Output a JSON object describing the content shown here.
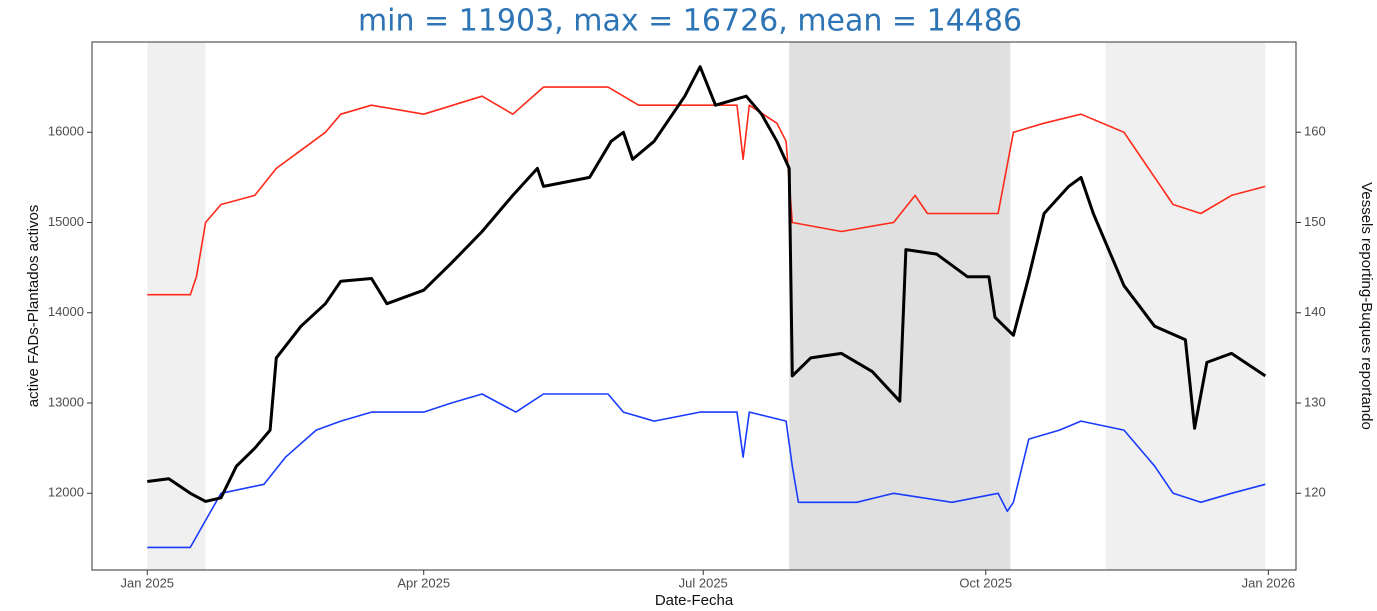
{
  "chart_data": {
    "type": "line",
    "title": "min = 11903, max = 16726, mean = 14486",
    "x_label": "Date-Fecha",
    "y_label": "active FADs-Plantados activos",
    "y2_label": "Vessels reporting-Buques reportando",
    "xlim": [
      "2024-12-14",
      "2026-01-10"
    ],
    "xticks": [
      {
        "value": "2025-01-01",
        "label": "Jan 2025"
      },
      {
        "value": "2025-04-01",
        "label": "Apr 2025"
      },
      {
        "value": "2025-07-01",
        "label": "Jul 2025"
      },
      {
        "value": "2025-10-01",
        "label": "Oct 2025"
      },
      {
        "value": "2026-01-01",
        "label": "Jan 2026"
      }
    ],
    "ylim": [
      11150,
      17000
    ],
    "yticks": [
      12000,
      13000,
      14000,
      15000,
      16000
    ],
    "y2lim": [
      111.5,
      170
    ],
    "y2ticks": [
      120,
      130,
      140,
      150,
      160
    ],
    "shaded_regions": [
      {
        "start": "2025-01-01",
        "end": "2025-01-20",
        "color": "#f0f0f0"
      },
      {
        "start": "2025-07-29",
        "end": "2025-10-09",
        "color": "#e0e0e0"
      },
      {
        "start": "2025-11-09",
        "end": "2025-12-31",
        "color": "#f0f0f0"
      }
    ],
    "series": [
      {
        "color": "#000000",
        "axis": "y",
        "x": [
          "2025-01-01",
          "2025-01-08",
          "2025-01-15",
          "2025-01-20",
          "2025-01-25",
          "2025-01-30",
          "2025-02-05",
          "2025-02-10",
          "2025-02-12",
          "2025-02-20",
          "2025-02-28",
          "2025-03-05",
          "2025-03-15",
          "2025-03-20",
          "2025-04-01",
          "2025-04-10",
          "2025-04-20",
          "2025-04-30",
          "2025-05-08",
          "2025-05-10",
          "2025-05-25",
          "2025-06-01",
          "2025-06-05",
          "2025-06-08",
          "2025-06-15",
          "2025-06-25",
          "2025-06-30",
          "2025-07-05",
          "2025-07-15",
          "2025-07-20",
          "2025-07-25",
          "2025-07-29",
          "2025-07-30",
          "2025-08-05",
          "2025-08-15",
          "2025-08-25",
          "2025-09-03",
          "2025-09-05",
          "2025-09-15",
          "2025-09-25",
          "2025-10-02",
          "2025-10-04",
          "2025-10-10",
          "2025-10-15",
          "2025-10-20",
          "2025-10-28",
          "2025-11-01",
          "2025-11-05",
          "2025-11-15",
          "2025-11-25",
          "2025-12-05",
          "2025-12-08",
          "2025-12-12",
          "2025-12-20",
          "2025-12-31"
        ],
        "values": [
          12130,
          12160,
          12000,
          11910,
          11950,
          12300,
          12500,
          12700,
          13500,
          13850,
          14100,
          14350,
          14380,
          14100,
          14250,
          14550,
          14900,
          15300,
          15600,
          15400,
          15500,
          15900,
          16000,
          15700,
          15900,
          16400,
          16726,
          16300,
          16400,
          16200,
          15900,
          15600,
          13300,
          13500,
          13550,
          13350,
          13020,
          14700,
          14650,
          14400,
          14400,
          13950,
          13750,
          14400,
          15100,
          15400,
          15500,
          15100,
          14300,
          13850,
          13700,
          12720,
          13450,
          13550,
          13300
        ]
      },
      {
        "color": "#ff2a1a",
        "axis": "y2",
        "x": [
          "2025-01-01",
          "2025-01-15",
          "2025-01-17",
          "2025-01-20",
          "2025-01-25",
          "2025-02-05",
          "2025-02-12",
          "2025-02-20",
          "2025-02-28",
          "2025-03-05",
          "2025-03-15",
          "2025-04-01",
          "2025-04-20",
          "2025-04-30",
          "2025-05-10",
          "2025-05-31",
          "2025-06-10",
          "2025-07-01",
          "2025-07-12",
          "2025-07-14",
          "2025-07-16",
          "2025-07-25",
          "2025-07-28",
          "2025-07-30",
          "2025-08-15",
          "2025-09-01",
          "2025-09-08",
          "2025-09-12",
          "2025-09-20",
          "2025-10-05",
          "2025-10-10",
          "2025-10-20",
          "2025-11-01",
          "2025-11-15",
          "2025-11-25",
          "2025-12-01",
          "2025-12-10",
          "2025-12-20",
          "2025-12-31"
        ],
        "values": [
          142,
          142,
          144,
          150,
          152,
          153,
          156,
          158,
          160,
          162,
          163,
          162,
          164,
          162,
          165,
          165,
          163,
          163,
          163,
          157,
          163,
          161,
          159,
          150,
          149,
          150,
          153,
          151,
          151,
          151,
          160,
          161,
          162,
          160,
          155,
          152,
          151,
          153,
          154
        ]
      },
      {
        "color": "#1a3cff",
        "axis": "y2",
        "x": [
          "2025-01-01",
          "2025-01-15",
          "2025-01-20",
          "2025-01-25",
          "2025-02-08",
          "2025-02-15",
          "2025-02-25",
          "2025-03-05",
          "2025-03-15",
          "2025-04-01",
          "2025-04-10",
          "2025-04-20",
          "2025-05-01",
          "2025-05-10",
          "2025-05-31",
          "2025-06-05",
          "2025-06-15",
          "2025-06-30",
          "2025-07-12",
          "2025-07-14",
          "2025-07-16",
          "2025-07-28",
          "2025-07-30",
          "2025-08-01",
          "2025-08-20",
          "2025-09-01",
          "2025-09-20",
          "2025-10-05",
          "2025-10-08",
          "2025-10-10",
          "2025-10-15",
          "2025-10-25",
          "2025-11-01",
          "2025-11-15",
          "2025-11-25",
          "2025-12-01",
          "2025-12-10",
          "2025-12-20",
          "2025-12-31"
        ],
        "values": [
          114,
          114,
          117,
          120,
          121,
          124,
          127,
          128,
          129,
          129,
          130,
          131,
          129,
          131,
          131,
          129,
          128,
          129,
          129,
          124,
          129,
          128,
          123,
          119,
          119,
          120,
          119,
          120,
          118,
          119,
          126,
          127,
          128,
          127,
          123,
          120,
          119,
          120,
          121
        ]
      }
    ]
  }
}
